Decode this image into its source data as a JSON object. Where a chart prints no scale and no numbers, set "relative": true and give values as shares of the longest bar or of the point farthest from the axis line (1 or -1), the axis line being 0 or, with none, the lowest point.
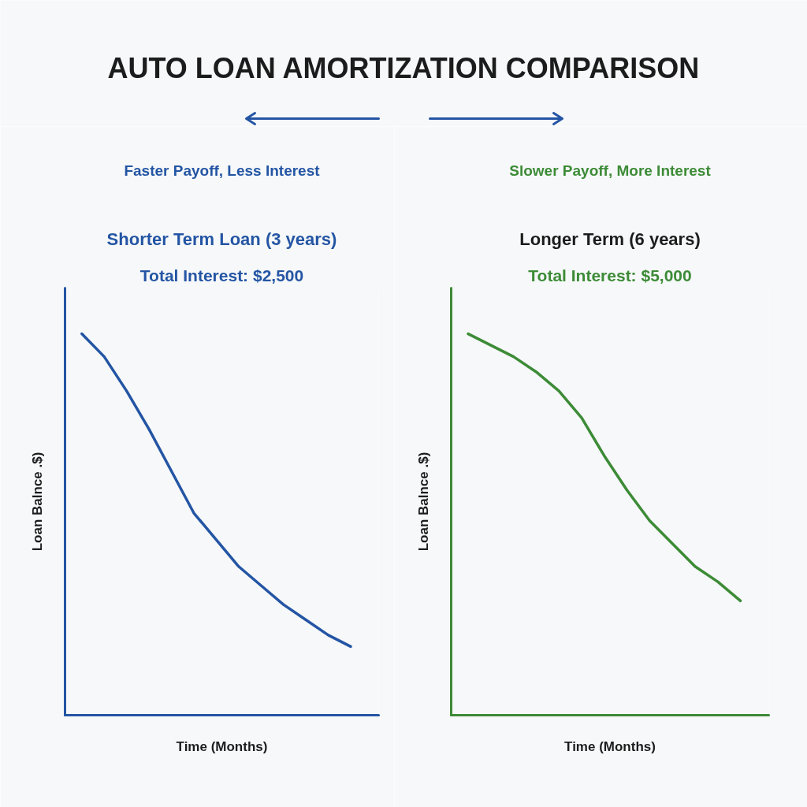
{
  "chart_data": [
    {
      "type": "other",
      "title": "AUTO LOAN AMORTIZATION COMPARISON"
    },
    {
      "type": "line",
      "title": "Shorter Term Loan (3 years)",
      "subtitle": "Total Interest: $2,500",
      "annotations": [
        "Faster Payoff, Less Interest"
      ],
      "xlabel": "Time (Months)",
      "ylabel": "Loan Balnce .$)",
      "relative": true,
      "categories": [
        null,
        null,
        null,
        null,
        null,
        null,
        null,
        null,
        null,
        null,
        null,
        null,
        null
      ],
      "series": [
        {
          "color": "#2455a4",
          "values": [
            1.0,
            0.94,
            0.85,
            0.75,
            0.64,
            0.53,
            0.46,
            0.39,
            0.34,
            0.29,
            0.25,
            0.21,
            0.18
          ]
        }
      ]
    },
    {
      "type": "line",
      "title": "Longer Term (6 years)",
      "subtitle": "Total Interest: $5,000",
      "annotations": [
        "Slower Payoff, More Interest"
      ],
      "xlabel": "Time (Months)",
      "ylabel": "Loan Balnce .$)",
      "relative": true,
      "categories": [
        null,
        null,
        null,
        null,
        null,
        null,
        null,
        null,
        null,
        null,
        null,
        null,
        null
      ],
      "series": [
        {
          "color": "#3d8b37",
          "values": [
            1.0,
            0.97,
            0.94,
            0.9,
            0.85,
            0.78,
            0.68,
            0.59,
            0.51,
            0.45,
            0.39,
            0.35,
            0.3
          ]
        }
      ]
    }
  ]
}
